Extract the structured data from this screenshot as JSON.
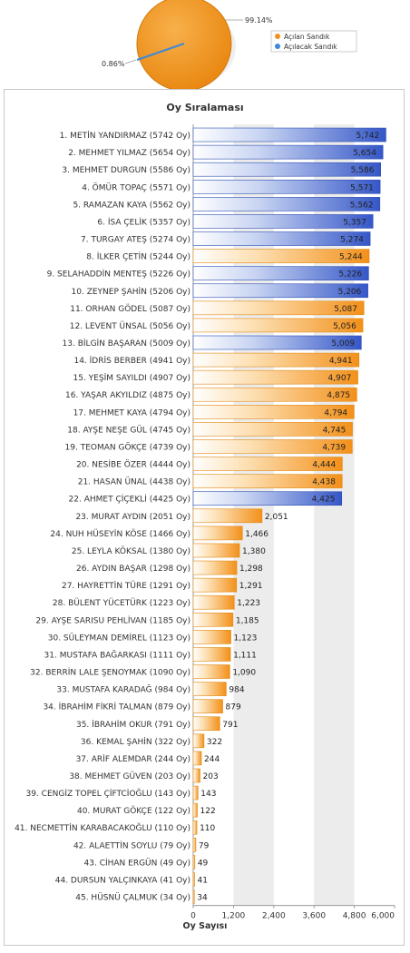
{
  "pie": {
    "slices": [
      {
        "name": "Açılan Sandık",
        "pct_label": "99.14%",
        "value": 99.14,
        "color": "#f39019"
      },
      {
        "name": "Açılacak Sandık",
        "pct_label": "0.86%",
        "value": 0.86,
        "color": "#3c8ad9"
      }
    ]
  },
  "chart_data": {
    "type": "bar",
    "orientation": "horizontal",
    "title": "Oy Sıralaması",
    "xlabel": "Oy Sayısı",
    "ylabel": "",
    "xlim": [
      0,
      6000
    ],
    "ticks": [
      "0",
      "1,200",
      "2,400",
      "3,600",
      "4,800",
      "6,000"
    ],
    "grid": true,
    "colors": {
      "blue": "#3b61cf",
      "orange": "#f59a1d"
    },
    "categories": [
      "1. METİN YANDIRMAZ (5742 Oy)",
      "2. MEHMET YILMAZ (5654 Oy)",
      "3. MEHMET DURGUN (5586 Oy)",
      "4. ÖMÜR TOPAÇ (5571 Oy)",
      "5. RAMAZAN KAYA (5562 Oy)",
      "6. İSA ÇELİK (5357 Oy)",
      "7. TURGAY ATEŞ (5274 Oy)",
      "8. İLKER ÇETİN (5244 Oy)",
      "9. SELAHADDİN MENTEŞ (5226 Oy)",
      "10. ZEYNEP ŞAHİN (5206 Oy)",
      "11. ORHAN GÖDEL (5087 Oy)",
      "12. LEVENT ÜNSAL (5056 Oy)",
      "13. BİLGİN BAŞARAN (5009 Oy)",
      "14. İDRİS BERBER (4941 Oy)",
      "15. YEŞİM SAYILDI (4907 Oy)",
      "16. YAŞAR AKYILDIZ (4875 Oy)",
      "17. MEHMET KAYA (4794 Oy)",
      "18. AYŞE NEŞE GÜL (4745 Oy)",
      "19. TEOMAN GÖKÇE (4739 Oy)",
      "20. NESİBE ÖZER (4444 Oy)",
      "21. HASAN ÜNAL (4438 Oy)",
      "22. AHMET ÇİÇEKLİ (4425 Oy)",
      "23. MURAT AYDIN (2051 Oy)",
      "24. NUH HÜSEYİN KÖSE (1466 Oy)",
      "25. LEYLA KÖKSAL (1380 Oy)",
      "26. AYDIN BAŞAR (1298 Oy)",
      "27. HAYRETTİN TÜRE (1291 Oy)",
      "28. BÜLENT YÜCETÜRK (1223 Oy)",
      "29. AYŞE SARISU PEHLİVAN (1185 Oy)",
      "30. SÜLEYMAN DEMİREL (1123 Oy)",
      "31. MUSTAFA BAĞARKASI (1111 Oy)",
      "32. BERRİN LALE ŞENOYMAK (1090 Oy)",
      "33. MUSTAFA KARADAĞ (984 Oy)",
      "34. İBRAHİM FİKRİ TALMAN (879 Oy)",
      "35. İBRAHİM OKUR (791 Oy)",
      "36. KEMAL ŞAHİN (322 Oy)",
      "37. ARİF ALEMDAR (244 Oy)",
      "38. MEHMET GÜVEN (203 Oy)",
      "39. CENGİZ TOPEL ÇİFTCİOĞLU (143 Oy)",
      "40. MURAT GÖKÇE (122 Oy)",
      "41. NECMETTİN KARABACAKOĞLU (110 Oy)",
      "42. ALAETTİN SOYLU (79 Oy)",
      "43. CİHAN ERGÜN (49 Oy)",
      "44. DURSUN YALÇINKAYA (41 Oy)",
      "45. HÜSNÜ ÇALMUK (34 Oy)"
    ],
    "values": [
      5742,
      5654,
      5586,
      5571,
      5562,
      5357,
      5274,
      5244,
      5226,
      5206,
      5087,
      5056,
      5009,
      4941,
      4907,
      4875,
      4794,
      4745,
      4739,
      4444,
      4438,
      4425,
      2051,
      1466,
      1380,
      1298,
      1291,
      1223,
      1185,
      1123,
      1111,
      1090,
      984,
      879,
      791,
      322,
      244,
      203,
      143,
      122,
      110,
      79,
      49,
      41,
      34
    ],
    "value_labels": [
      "5,742",
      "5,654",
      "5,586",
      "5,571",
      "5,562",
      "5,357",
      "5,274",
      "5,244",
      "5,226",
      "5,206",
      "5,087",
      "5,056",
      "5,009",
      "4,941",
      "4,907",
      "4,875",
      "4,794",
      "4,745",
      "4,739",
      "4,444",
      "4,438",
      "4,425",
      "2,051",
      "1,466",
      "1,380",
      "1,298",
      "1,291",
      "1,223",
      "1,185",
      "1,123",
      "1,111",
      "1,090",
      "984",
      "879",
      "791",
      "322",
      "244",
      "203",
      "143",
      "122",
      "110",
      "79",
      "49",
      "41",
      "34"
    ],
    "bar_colors": [
      "blue",
      "blue",
      "blue",
      "blue",
      "blue",
      "blue",
      "blue",
      "orange",
      "blue",
      "blue",
      "orange",
      "orange",
      "blue",
      "orange",
      "orange",
      "orange",
      "orange",
      "orange",
      "orange",
      "orange",
      "orange",
      "blue",
      "orange",
      "orange",
      "orange",
      "orange",
      "orange",
      "orange",
      "orange",
      "orange",
      "orange",
      "orange",
      "orange",
      "orange",
      "orange",
      "orange",
      "orange",
      "orange",
      "orange",
      "orange",
      "orange",
      "orange",
      "orange",
      "orange",
      "orange"
    ]
  }
}
